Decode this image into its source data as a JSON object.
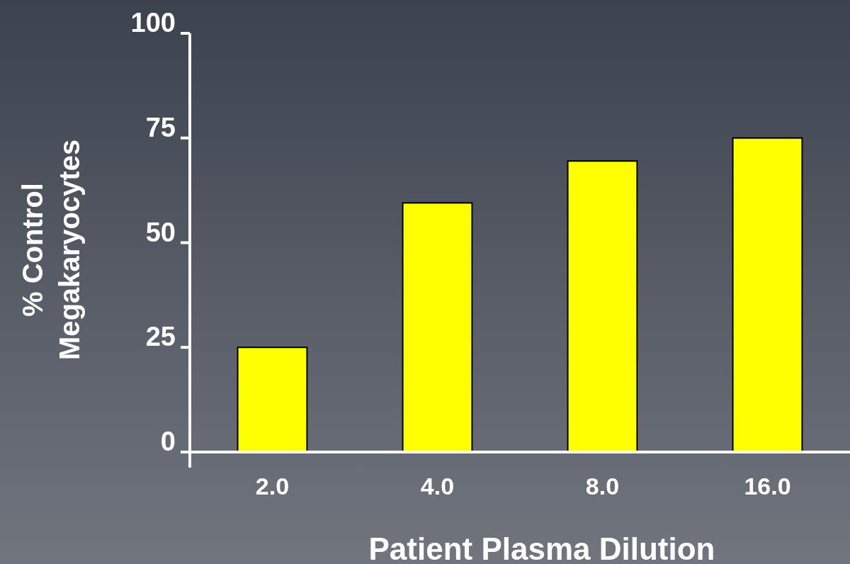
{
  "chart_data": {
    "type": "bar",
    "xlabel": "Patient Plasma Dilution",
    "ylabel": "% Control\nMegakaryocytes",
    "categories": [
      "2.0",
      "4.0",
      "8.0",
      "16.0"
    ],
    "values": [
      25,
      59.5,
      69.5,
      75
    ],
    "color": "#ffff00",
    "ylim": [
      0,
      100
    ],
    "yticks": [
      0,
      25,
      50,
      75,
      100
    ]
  }
}
